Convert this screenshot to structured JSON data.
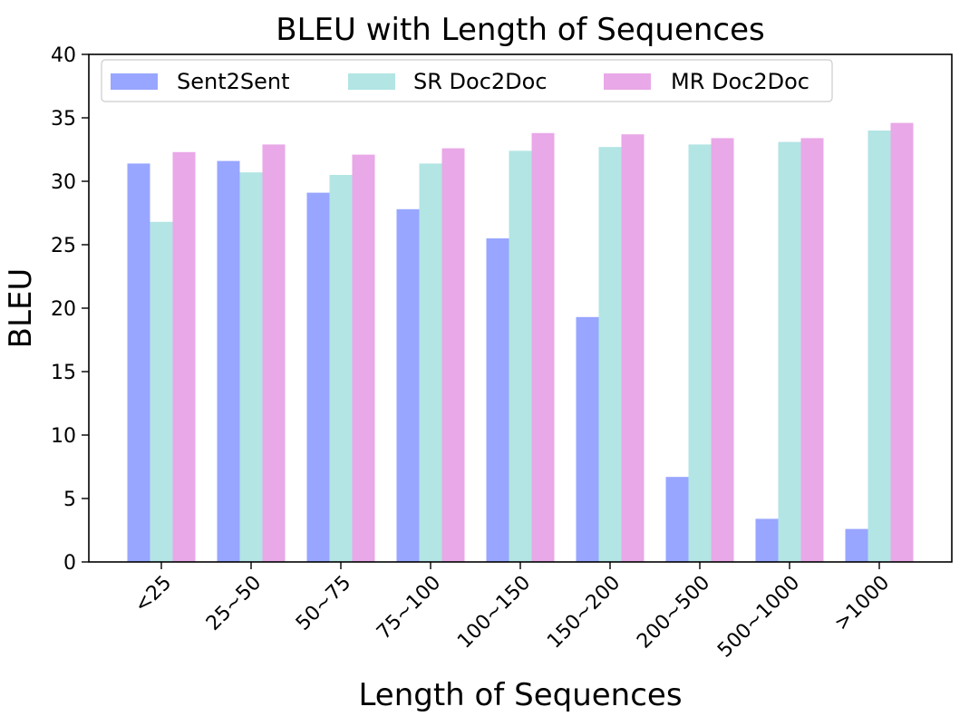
{
  "chart_data": {
    "type": "bar",
    "title": "BLEU with Length of Sequences",
    "xlabel": "Length of Sequences",
    "ylabel": "BLEU",
    "ylim": [
      0,
      40
    ],
    "yticks": [
      0,
      5,
      10,
      15,
      20,
      25,
      30,
      35,
      40
    ],
    "grid": false,
    "legend_position": "top",
    "categories": [
      "<25",
      "25~50",
      "50~75",
      "75~100",
      "100~150",
      "150~200",
      "200~500",
      "500~1000",
      ">1000"
    ],
    "series": [
      {
        "name": "Sent2Sent",
        "color": "#98a6ff",
        "values": [
          31.4,
          31.6,
          29.1,
          27.8,
          25.5,
          19.3,
          6.7,
          3.4,
          2.6
        ]
      },
      {
        "name": "SR Doc2Doc",
        "color": "#b2e5e3",
        "values": [
          26.8,
          30.7,
          30.5,
          31.4,
          32.4,
          32.7,
          32.9,
          33.1,
          34.0
        ]
      },
      {
        "name": "MR Doc2Doc",
        "color": "#e9a8e7",
        "values": [
          32.3,
          32.9,
          32.1,
          32.6,
          33.8,
          33.7,
          33.4,
          33.4,
          34.6
        ]
      }
    ]
  }
}
